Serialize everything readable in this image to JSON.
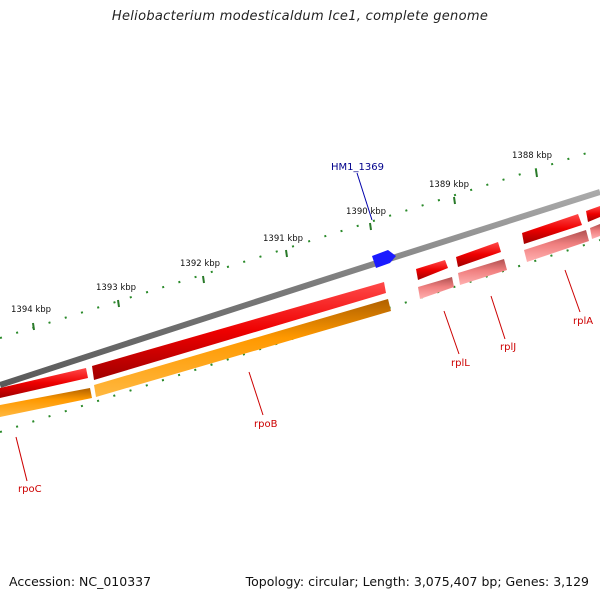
{
  "title": "Heliobacterium modesticaldum Ice1, complete genome",
  "accession_text": "Accession: NC_010337",
  "summary_text": "Topology: circular; Length: 3,075,407 bp; Genes: 3,129",
  "colors": {
    "backbone": "#8a8a8a",
    "forward_gene": "#ee0000",
    "reverse_gene": "#ff9900",
    "rna": "#f08080",
    "hypothetical": "#1a1aff",
    "tick": "#228822",
    "gene_label": "#cc0000",
    "hypo_label": "#00008b"
  },
  "scale": {
    "labels": [
      "1388 kbp",
      "1389 kbp",
      "1390 kbp",
      "1391 kbp",
      "1392 kbp",
      "1393 kbp",
      "1394 kbp"
    ]
  },
  "genes": [
    {
      "name": "rpoC"
    },
    {
      "name": "rpoB"
    },
    {
      "name": "rplL"
    },
    {
      "name": "rplJ"
    },
    {
      "name": "rplA"
    },
    {
      "name": "HM1_1369"
    }
  ]
}
